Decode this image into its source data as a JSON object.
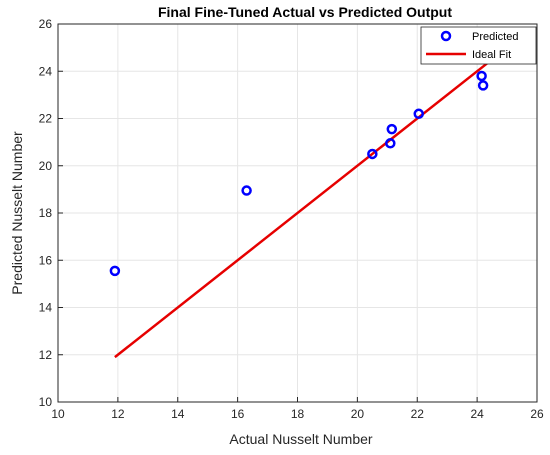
{
  "chart_data": {
    "type": "scatter",
    "title": "Final Fine-Tuned Actual vs Predicted Output",
    "xlabel": "Actual Nusselt Number",
    "ylabel": "Predicted Nusselt Number",
    "xlim": [
      10,
      26
    ],
    "ylim": [
      10,
      26
    ],
    "xticks": [
      "10",
      "12",
      "14",
      "16",
      "18",
      "20",
      "22",
      "24",
      "26"
    ],
    "yticks": [
      "10",
      "12",
      "14",
      "16",
      "18",
      "20",
      "22",
      "24",
      "26"
    ],
    "grid": true,
    "legend_position": "top-right",
    "series": [
      {
        "name": "Predicted",
        "kind": "scatter",
        "color": "#0000ff",
        "marker": "circle-open",
        "x": [
          11.9,
          16.3,
          20.5,
          21.1,
          21.15,
          22.05,
          24.15,
          24.2
        ],
        "y": [
          15.55,
          18.95,
          20.5,
          20.95,
          21.55,
          22.2,
          23.8,
          23.4
        ]
      },
      {
        "name": "Ideal Fit",
        "kind": "line",
        "color": "#e60000",
        "x": [
          11.9,
          24.4
        ],
        "y": [
          11.9,
          24.4
        ]
      }
    ]
  }
}
